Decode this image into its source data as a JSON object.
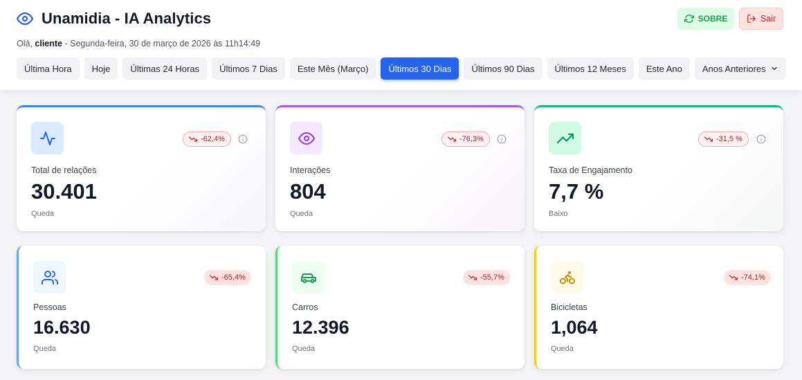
{
  "header": {
    "title": "Unamidia - IA Analytics",
    "greeting_prefix": "Olá, ",
    "user": "cliente",
    "datetime": " - Segunda-feira, 30 de março de 2026 às 11h14:49",
    "sobre_label": "SOBRE",
    "sair_label": "Sair"
  },
  "tabs": [
    {
      "label": "Última Hora"
    },
    {
      "label": "Hoje"
    },
    {
      "label": "Últimas 24 Horas"
    },
    {
      "label": "Últimos 7 Dias"
    },
    {
      "label": "Este Mês (Março)"
    },
    {
      "label": "Últimos 30 Dias",
      "active": true
    },
    {
      "label": "Últimos 90 Dias"
    },
    {
      "label": "Últimos 12 Meses"
    },
    {
      "label": "Este Ano"
    },
    {
      "label": "Anos Anteriores"
    }
  ],
  "metrics": [
    {
      "icon": "activity-icon",
      "label": "Total de relações",
      "value": "30.401",
      "change": "-62,4%",
      "status": "Queda",
      "color": "#3b82f6",
      "icon_bg": "#dbeafe"
    },
    {
      "icon": "eye-icon",
      "label": "Interações",
      "value": "804",
      "change": "-76,3%",
      "status": "Queda",
      "color": "#a855f7",
      "icon_bg": "#f3e8ff"
    },
    {
      "icon": "trending-up-icon",
      "label": "Taxa de Engajamento",
      "value": "7,7 %",
      "change": "-31,5 %",
      "status": "Baixo",
      "color": "#10b981",
      "icon_bg": "#d1fae5"
    },
    {
      "icon": "users-icon",
      "label": "Pessoas",
      "value": "16.630",
      "change": "-65,4%",
      "status": "Queda",
      "color": "#60a5fa",
      "icon_bg": "#eff6ff"
    },
    {
      "icon": "car-icon",
      "label": "Carros",
      "value": "12.396",
      "change": "-55,7%",
      "status": "Queda",
      "color": "#4ade80",
      "icon_bg": "#f0fdf4"
    },
    {
      "icon": "bicycle-icon",
      "label": "Bicicletas",
      "value": "1,064",
      "change": "-74,1%",
      "status": "Queda",
      "color": "#facc15",
      "icon_bg": "#fefce8"
    }
  ]
}
